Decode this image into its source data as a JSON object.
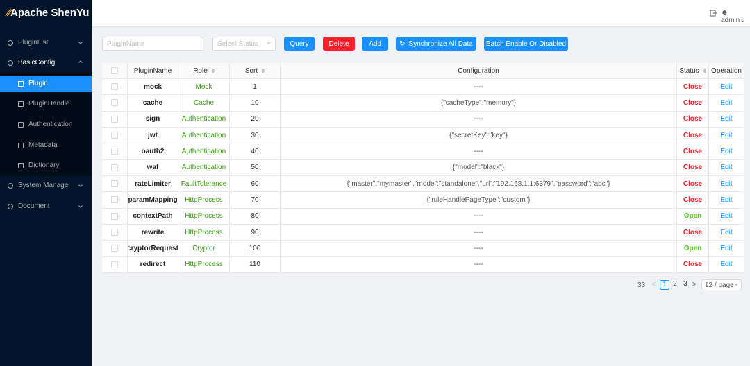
{
  "header": {
    "logo": "Apache ShenYu",
    "user": "admin"
  },
  "sidebar": {
    "items": [
      {
        "label": "PluginList",
        "level": 1,
        "expandable": true
      },
      {
        "label": "BasicConfig",
        "level": 1,
        "expandable": true,
        "open": true
      },
      {
        "label": "Plugin",
        "level": 2,
        "active": true
      },
      {
        "label": "PluginHandle",
        "level": 2
      },
      {
        "label": "Authentication",
        "level": 2
      },
      {
        "label": "Metadata",
        "level": 2
      },
      {
        "label": "Dictionary",
        "level": 2
      },
      {
        "label": "System Manage",
        "level": 1,
        "expandable": true
      },
      {
        "label": "Document",
        "level": 1,
        "expandable": true
      }
    ]
  },
  "toolbar": {
    "plugin_name_placeholder": "PluginName",
    "status_placeholder": "Select Status",
    "buttons": [
      {
        "label": "Query",
        "color": "#1890ff"
      },
      {
        "label": "Delete",
        "color": "#f5222d"
      },
      {
        "label": "Add",
        "color": "#1890ff"
      },
      {
        "label": "Synchronize All Data",
        "color": "#1890ff",
        "icon": true
      },
      {
        "label": "Batch Enable Or Disabled",
        "color": "#1890ff"
      }
    ]
  },
  "table": {
    "columns": [
      {
        "title": "PluginName"
      },
      {
        "title": "Role",
        "sortable": true
      },
      {
        "title": "Sort",
        "sortable": true
      },
      {
        "title": "Configuration"
      },
      {
        "title": "Status",
        "sortable": true
      },
      {
        "title": "Operation"
      }
    ],
    "rows": [
      {
        "name": "mock",
        "role": "Mock",
        "sort": 1,
        "config": "----",
        "status": "Close",
        "status_color": "#f5222d",
        "operation": "Edit"
      },
      {
        "name": "cache",
        "role": "Cache",
        "sort": 10,
        "config": "{\"cacheType\":\"memory\"}",
        "status": "Close",
        "status_color": "#f5222d",
        "operation": "Edit"
      },
      {
        "name": "sign",
        "role": "Authentication",
        "sort": 20,
        "config": "----",
        "status": "Close",
        "status_color": "#f5222d",
        "operation": "Edit"
      },
      {
        "name": "jwt",
        "role": "Authentication",
        "sort": 30,
        "config": "{\"secretKey\":\"key\"}",
        "status": "Close",
        "status_color": "#f5222d",
        "operation": "Edit"
      },
      {
        "name": "oauth2",
        "role": "Authentication",
        "sort": 40,
        "config": "----",
        "status": "Close",
        "status_color": "#f5222d",
        "operation": "Edit"
      },
      {
        "name": "waf",
        "role": "Authentication",
        "sort": 50,
        "config": "{\"model\":\"black\"}",
        "status": "Close",
        "status_color": "#f5222d",
        "operation": "Edit"
      },
      {
        "name": "rateLimiter",
        "role": "FaultTolerance",
        "sort": 60,
        "config": "{\"master\":\"mymaster\",\"mode\":\"standalone\",\"url\":\"192.168.1.1:6379\",\"password\":\"abc\"}",
        "status": "Close",
        "status_color": "#f5222d",
        "operation": "Edit"
      },
      {
        "name": "paramMapping",
        "role": "HttpProcess",
        "sort": 70,
        "config": "{\"ruleHandlePageType\":\"custom\"}",
        "status": "Close",
        "status_color": "#f5222d",
        "operation": "Edit"
      },
      {
        "name": "contextPath",
        "role": "HttpProcess",
        "sort": 80,
        "config": "----",
        "status": "Open",
        "status_color": "#52c41a",
        "operation": "Edit"
      },
      {
        "name": "rewrite",
        "role": "HttpProcess",
        "sort": 90,
        "config": "----",
        "status": "Close",
        "status_color": "#f5222d",
        "operation": "Edit"
      },
      {
        "name": "cryptorRequest",
        "role": "Cryptor",
        "sort": 100,
        "config": "----",
        "status": "Open",
        "status_color": "#52c41a",
        "operation": "Edit"
      },
      {
        "name": "redirect",
        "role": "HttpProcess",
        "sort": 110,
        "config": "----",
        "status": "Close",
        "status_color": "#f5222d",
        "operation": "Edit"
      }
    ]
  },
  "pagination": {
    "total": 33,
    "pages": [
      1,
      2,
      3
    ],
    "current": 0,
    "page_size": "12 / page"
  }
}
